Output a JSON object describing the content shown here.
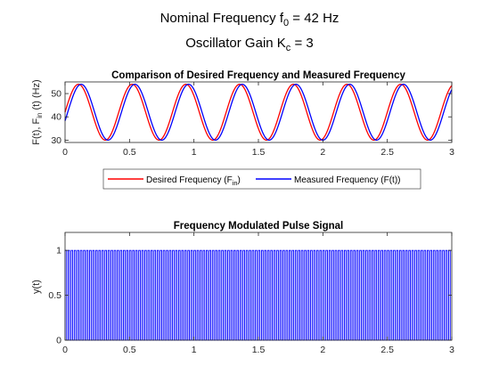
{
  "figure": {
    "title_line1": "Nominal Frequency f",
    "title_line1_sub": "0",
    "title_line1_rest": " = 42 Hz",
    "title_line2": "Oscillator Gain K",
    "title_line2_sub": "c",
    "title_line2_rest": " = 3"
  },
  "chart_data": [
    {
      "type": "line",
      "title": "Comparison of Desired Frequency and Measured Frequency",
      "xlabel": "",
      "ylabel_parts": [
        "F(t), F",
        "in",
        " (t) (Hz)"
      ],
      "xlim": [
        0,
        3
      ],
      "ylim": [
        29,
        55
      ],
      "xticks": [
        "0",
        "0.5",
        "1",
        "1.5",
        "2",
        "2.5",
        "3"
      ],
      "yticks": [
        "30",
        "40",
        "50"
      ],
      "grid": false,
      "legend_placement": "below-axes",
      "series": [
        {
          "name_parts": [
            "Desired Frequency (F",
            "in",
            ")"
          ],
          "color": "#ff0000",
          "model": "sine",
          "offset": 42,
          "amplitude": 12,
          "frequency_hz": 2.4,
          "phase_deg": 0
        },
        {
          "name_parts": [
            "Measured Frequency (F(t))"
          ],
          "color": "#0000ff",
          "model": "sine",
          "offset": 42,
          "amplitude": 12,
          "frequency_hz": 2.4,
          "phase_deg": -18
        }
      ]
    },
    {
      "type": "line",
      "title": "Frequency Modulated Pulse Signal",
      "xlabel": "",
      "ylabel": "y(t)",
      "xlim": [
        0,
        3
      ],
      "ylim": [
        0,
        1.2
      ],
      "xticks": [
        "0",
        "0.5",
        "1",
        "1.5",
        "2",
        "2.5",
        "3"
      ],
      "yticks": [
        "0",
        "0.5",
        "1"
      ],
      "grid": false,
      "series": [
        {
          "color": "#0000ff",
          "model": "pulse-train",
          "low": 0,
          "high": 1,
          "pulse_count": 126,
          "duty": 0.5
        }
      ]
    }
  ]
}
